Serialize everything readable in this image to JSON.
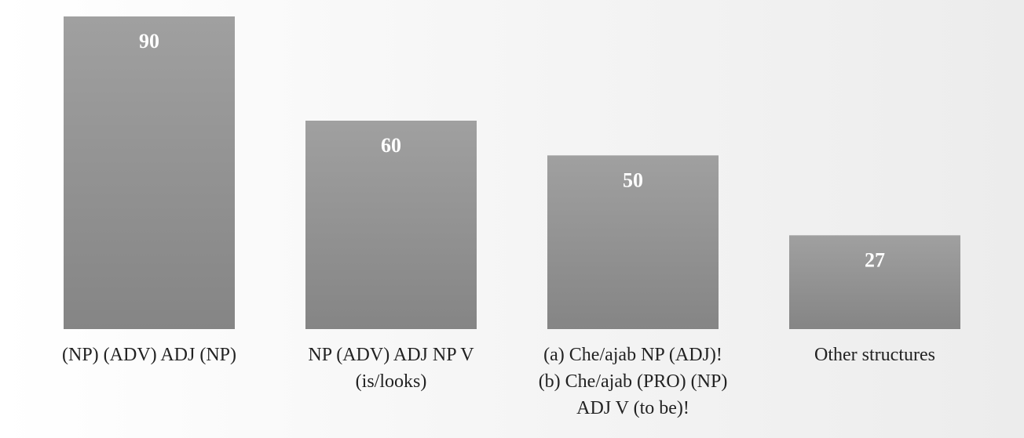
{
  "chart_data": {
    "type": "bar",
    "title": "",
    "xlabel": "",
    "ylabel": "",
    "categories": [
      [
        "(NP) (ADV) ADJ (NP)"
      ],
      [
        "NP (ADV) ADJ NP V",
        "(is/looks)"
      ],
      [
        "(a) Che/ajab NP (ADJ)!",
        "(b) Che/ajab (PRO) (NP)",
        "ADJ V (to be)!"
      ],
      [
        "Other structures"
      ]
    ],
    "values": [
      90,
      60,
      50,
      27
    ],
    "data_labels": [
      "90",
      "60",
      "50",
      "27"
    ],
    "ylim": [
      0,
      90
    ],
    "grid": false,
    "legend": "none",
    "colors": {
      "bar_top": "#a0a0a0",
      "bar_bottom": "#858585",
      "data_label": "#ffffff",
      "category_label": "#222222"
    }
  }
}
